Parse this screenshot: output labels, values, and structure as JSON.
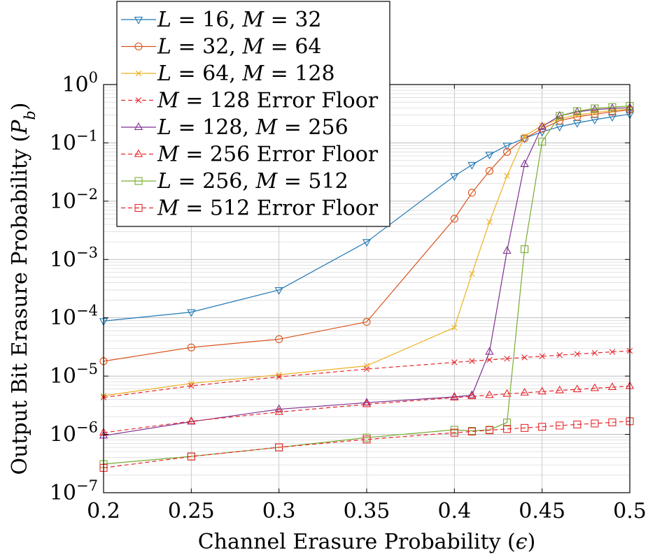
{
  "chart_data": {
    "type": "line",
    "xlabel": "Channel Erasure Probability (ϵ)",
    "ylabel": "Output Bit Erasure Probability (P_b)",
    "xlim": [
      0.2,
      0.5
    ],
    "ylim": [
      1e-07,
      1
    ],
    "yscale": "log",
    "grid": true,
    "legend_position": "top-left",
    "x_ticks": [
      0.2,
      0.25,
      0.3,
      0.35,
      0.4,
      0.45,
      0.5
    ],
    "x_tick_labels": [
      "0.2",
      "0.25",
      "0.3",
      "0.35",
      "0.4",
      "0.45",
      "0.5"
    ],
    "y_ticks": [
      0,
      -1,
      -2,
      -3,
      -4,
      -5,
      -6,
      -7
    ],
    "y_tick_labels": [
      {
        "base": "10",
        "exp": "0"
      },
      {
        "base": "10",
        "exp": "−1"
      },
      {
        "base": "10",
        "exp": "−2"
      },
      {
        "base": "10",
        "exp": "−3"
      },
      {
        "base": "10",
        "exp": "−4"
      },
      {
        "base": "10",
        "exp": "−5"
      },
      {
        "base": "10",
        "exp": "−6"
      },
      {
        "base": "10",
        "exp": "−7"
      }
    ],
    "series": [
      {
        "name": "L = 16, M = 32",
        "color": "#1f77b4",
        "marker": "triangle-down",
        "dash": "solid",
        "x": [
          0.2,
          0.25,
          0.3,
          0.35,
          0.4,
          0.41,
          0.42,
          0.43,
          0.44,
          0.45,
          0.46,
          0.47,
          0.48,
          0.49,
          0.5
        ],
        "y": [
          8.8e-05,
          0.000125,
          0.0003,
          0.002,
          0.027,
          0.042,
          0.063,
          0.09,
          0.12,
          0.155,
          0.19,
          0.22,
          0.25,
          0.28,
          0.31
        ]
      },
      {
        "name": "L = 32, M = 64",
        "color": "#d95319",
        "marker": "circle",
        "dash": "solid",
        "x": [
          0.2,
          0.25,
          0.3,
          0.35,
          0.4,
          0.41,
          0.42,
          0.43,
          0.44,
          0.45,
          0.46,
          0.47,
          0.48,
          0.49,
          0.5
        ],
        "y": [
          1.8e-05,
          3.1e-05,
          4.3e-05,
          8.5e-05,
          0.005,
          0.014,
          0.033,
          0.07,
          0.12,
          0.175,
          0.24,
          0.28,
          0.31,
          0.34,
          0.37
        ]
      },
      {
        "name": "L = 64, M = 128",
        "color": "#edb120",
        "marker": "x",
        "dash": "solid",
        "x": [
          0.2,
          0.25,
          0.3,
          0.35,
          0.4,
          0.41,
          0.42,
          0.43,
          0.44,
          0.45,
          0.46,
          0.47,
          0.48,
          0.49,
          0.5
        ],
        "y": [
          4.6e-06,
          7.5e-06,
          1.05e-05,
          1.5e-05,
          6.8e-05,
          0.00057,
          0.0044,
          0.027,
          0.13,
          0.2,
          0.26,
          0.3,
          0.33,
          0.36,
          0.38
        ]
      },
      {
        "name": "M = 128 Error Floor",
        "color": "#e8262b",
        "marker": "x",
        "dash": "dashed",
        "x": [
          0.2,
          0.25,
          0.3,
          0.35,
          0.4,
          0.41,
          0.42,
          0.43,
          0.44,
          0.45,
          0.46,
          0.47,
          0.48,
          0.49,
          0.5
        ],
        "y": [
          4.3e-06,
          6.8e-06,
          9.7e-06,
          1.32e-05,
          1.72e-05,
          1.81e-05,
          1.9e-05,
          1.99e-05,
          2.09e-05,
          2.19e-05,
          2.29e-05,
          2.39e-05,
          2.49e-05,
          2.6e-05,
          2.71e-05
        ]
      },
      {
        "name": "L = 128, M = 256",
        "color": "#7e2f8e",
        "marker": "triangle-up",
        "dash": "solid",
        "x": [
          0.2,
          0.25,
          0.3,
          0.35,
          0.4,
          0.41,
          0.42,
          0.43,
          0.44,
          0.45,
          0.46,
          0.47,
          0.48,
          0.49,
          0.5
        ],
        "y": [
          9.5e-07,
          1.65e-06,
          2.7e-06,
          3.5e-06,
          4.4e-06,
          4.7e-06,
          2.6e-05,
          0.0014,
          0.043,
          0.19,
          0.29,
          0.34,
          0.37,
          0.39,
          0.4
        ]
      },
      {
        "name": "M = 256 Error Floor",
        "color": "#e8262b",
        "marker": "triangle-up",
        "dash": "dashed",
        "x": [
          0.2,
          0.25,
          0.3,
          0.35,
          0.4,
          0.41,
          0.42,
          0.43,
          0.44,
          0.45,
          0.46,
          0.47,
          0.48,
          0.49,
          0.5
        ],
        "y": [
          1.07e-06,
          1.68e-06,
          2.42e-06,
          3.28e-06,
          4.27e-06,
          4.49e-06,
          4.71e-06,
          4.94e-06,
          5.18e-06,
          5.42e-06,
          5.67e-06,
          5.92e-06,
          6.18e-06,
          6.45e-06,
          6.72e-06
        ]
      },
      {
        "name": "L = 256, M = 512",
        "color": "#77ac30",
        "marker": "square",
        "dash": "solid",
        "x": [
          0.2,
          0.25,
          0.3,
          0.35,
          0.4,
          0.41,
          0.42,
          0.43,
          0.44,
          0.45,
          0.46,
          0.47,
          0.48,
          0.49,
          0.5
        ],
        "y": [
          3.1e-07,
          4.2e-07,
          6e-07,
          8.8e-07,
          1.2e-06,
          1.15e-06,
          1.2e-06,
          1.6e-06,
          0.0015,
          0.105,
          0.29,
          0.35,
          0.39,
          0.41,
          0.43
        ]
      },
      {
        "name": "M = 512 Error Floor",
        "color": "#e8262b",
        "marker": "square",
        "dash": "dashed",
        "x": [
          0.2,
          0.25,
          0.3,
          0.35,
          0.4,
          0.41,
          0.42,
          0.43,
          0.44,
          0.45,
          0.46,
          0.47,
          0.48,
          0.49,
          0.5
        ],
        "y": [
          2.67e-07,
          4.17e-07,
          6e-07,
          8.2e-07,
          1.07e-06,
          1.12e-06,
          1.18e-06,
          1.24e-06,
          1.29e-06,
          1.35e-06,
          1.42e-06,
          1.48e-06,
          1.54e-06,
          1.61e-06,
          1.68e-06
        ]
      }
    ],
    "legend_entries": [
      {
        "parts": [
          {
            "t": "L",
            "i": true
          },
          {
            "t": " = 16, ",
            "i": false
          },
          {
            "t": "M",
            "i": true
          },
          {
            "t": " = 32",
            "i": false
          }
        ]
      },
      {
        "parts": [
          {
            "t": "L",
            "i": true
          },
          {
            "t": " = 32, ",
            "i": false
          },
          {
            "t": "M",
            "i": true
          },
          {
            "t": " = 64",
            "i": false
          }
        ]
      },
      {
        "parts": [
          {
            "t": "L",
            "i": true
          },
          {
            "t": " = 64, ",
            "i": false
          },
          {
            "t": "M",
            "i": true
          },
          {
            "t": " = 128",
            "i": false
          }
        ]
      },
      {
        "parts": [
          {
            "t": "M",
            "i": true
          },
          {
            "t": " = 128 Error Floor",
            "i": false
          }
        ]
      },
      {
        "parts": [
          {
            "t": "L",
            "i": true
          },
          {
            "t": " = 128, ",
            "i": false
          },
          {
            "t": "M",
            "i": true
          },
          {
            "t": " = 256",
            "i": false
          }
        ]
      },
      {
        "parts": [
          {
            "t": "M",
            "i": true
          },
          {
            "t": " = 256 Error Floor",
            "i": false
          }
        ]
      },
      {
        "parts": [
          {
            "t": "L",
            "i": true
          },
          {
            "t": " = 256, ",
            "i": false
          },
          {
            "t": "M",
            "i": true
          },
          {
            "t": " = 512",
            "i": false
          }
        ]
      },
      {
        "parts": [
          {
            "t": "M",
            "i": true
          },
          {
            "t": " = 512 Error Floor",
            "i": false
          }
        ]
      }
    ],
    "xlabel_parts": [
      {
        "t": "Channel Erasure Probability (",
        "i": false
      },
      {
        "t": "ϵ",
        "i": true
      },
      {
        "t": ")",
        "i": false
      }
    ],
    "ylabel_parts": [
      {
        "t": "Output Bit Erasure Probability (",
        "i": false
      },
      {
        "t": "P",
        "i": true
      },
      {
        "t": "b",
        "i": true,
        "sub": true
      },
      {
        "t": ")",
        "i": false
      }
    ]
  }
}
